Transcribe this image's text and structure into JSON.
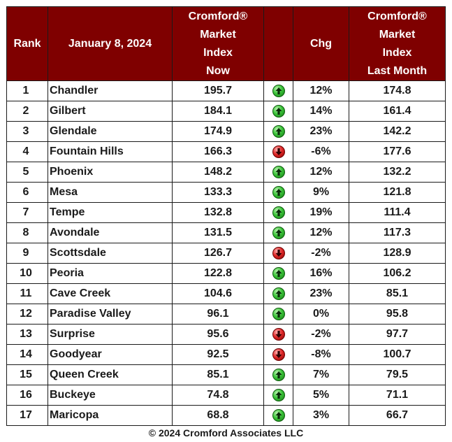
{
  "header": {
    "rank": "Rank",
    "date": "January 8, 2024",
    "now": [
      "Cromford®",
      "Market",
      "Index",
      "Now"
    ],
    "chg": "Chg",
    "last": [
      "Cromford®",
      "Market",
      "Index",
      "Last Month"
    ]
  },
  "rows": [
    {
      "rank": "1",
      "city": "Chandler",
      "now": "195.7",
      "dir": "up",
      "chg": "12%",
      "last": "174.8"
    },
    {
      "rank": "2",
      "city": "Gilbert",
      "now": "184.1",
      "dir": "up",
      "chg": "14%",
      "last": "161.4"
    },
    {
      "rank": "3",
      "city": "Glendale",
      "now": "174.9",
      "dir": "up",
      "chg": "23%",
      "last": "142.2"
    },
    {
      "rank": "4",
      "city": "Fountain Hills",
      "now": "166.3",
      "dir": "down",
      "chg": "-6%",
      "last": "177.6"
    },
    {
      "rank": "5",
      "city": "Phoenix",
      "now": "148.2",
      "dir": "up",
      "chg": "12%",
      "last": "132.2"
    },
    {
      "rank": "6",
      "city": "Mesa",
      "now": "133.3",
      "dir": "up",
      "chg": "9%",
      "last": "121.8"
    },
    {
      "rank": "7",
      "city": "Tempe",
      "now": "132.8",
      "dir": "up",
      "chg": "19%",
      "last": "111.4"
    },
    {
      "rank": "8",
      "city": "Avondale",
      "now": "131.5",
      "dir": "up",
      "chg": "12%",
      "last": "117.3"
    },
    {
      "rank": "9",
      "city": "Scottsdale",
      "now": "126.7",
      "dir": "down",
      "chg": "-2%",
      "last": "128.9"
    },
    {
      "rank": "10",
      "city": "Peoria",
      "now": "122.8",
      "dir": "up",
      "chg": "16%",
      "last": "106.2"
    },
    {
      "rank": "11",
      "city": "Cave Creek",
      "now": "104.6",
      "dir": "up",
      "chg": "23%",
      "last": "85.1"
    },
    {
      "rank": "12",
      "city": "Paradise Valley",
      "now": "96.1",
      "dir": "up",
      "chg": "0%",
      "last": "95.8"
    },
    {
      "rank": "13",
      "city": "Surprise",
      "now": "95.6",
      "dir": "down",
      "chg": "-2%",
      "last": "97.7"
    },
    {
      "rank": "14",
      "city": "Goodyear",
      "now": "92.5",
      "dir": "down",
      "chg": "-8%",
      "last": "100.7"
    },
    {
      "rank": "15",
      "city": "Queen Creek",
      "now": "85.1",
      "dir": "up",
      "chg": "7%",
      "last": "79.5"
    },
    {
      "rank": "16",
      "city": "Buckeye",
      "now": "74.8",
      "dir": "up",
      "chg": "5%",
      "last": "71.1"
    },
    {
      "rank": "17",
      "city": "Maricopa",
      "now": "68.8",
      "dir": "up",
      "chg": "3%",
      "last": "66.7"
    }
  ],
  "icons": {
    "up": "green-up-arrow-icon",
    "down": "red-down-arrow-icon"
  },
  "colors": {
    "header_bg": "#7f0000",
    "header_text": "#ffffff",
    "up": "#2db52a",
    "down": "#d41c1c"
  },
  "footer": "© 2024 Cromford Associates LLC"
}
